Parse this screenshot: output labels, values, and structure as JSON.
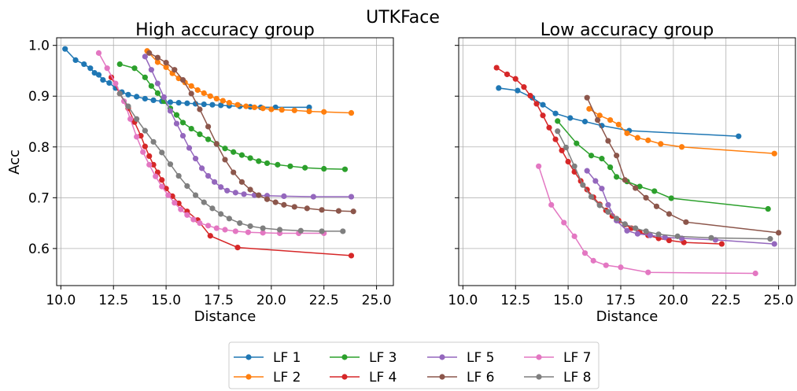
{
  "suptitle": "UTKFace",
  "colors": {
    "LF 1": "#1f77b4",
    "LF 2": "#ff7f0e",
    "LF 3": "#2ca02c",
    "LF 4": "#d62728",
    "LF 5": "#9467bd",
    "LF 6": "#8c564b",
    "LF 7": "#e377c2",
    "LF 8": "#7f7f7f"
  },
  "legend": {
    "position": "bottom-center",
    "ncol": 4,
    "entries": [
      "LF 1",
      "LF 2",
      "LF 3",
      "LF 4",
      "LF 5",
      "LF 6",
      "LF 7",
      "LF 8"
    ]
  },
  "chart_data": [
    {
      "type": "line",
      "title": "High accuracy group",
      "xlabel": "Distance",
      "ylabel": "Acc",
      "xlim": [
        9.8,
        25.8
      ],
      "ylim": [
        0.527,
        1.015
      ],
      "xticks": [
        10.0,
        12.5,
        15.0,
        17.5,
        20.0,
        22.5,
        25.0
      ],
      "xtick_labels": [
        "10.0",
        "12.5",
        "15.0",
        "17.5",
        "20.0",
        "22.5",
        "25.0"
      ],
      "yticks": [
        0.6,
        0.7,
        0.8,
        0.9,
        1.0
      ],
      "ytick_labels": [
        "0.6",
        "0.7",
        "0.8",
        "0.9",
        "1.0"
      ],
      "grid": true,
      "series": [
        {
          "name": "LF 1",
          "x": [
            10.2,
            10.7,
            11.1,
            11.4,
            11.6,
            11.8,
            12.0,
            12.3,
            12.6,
            12.9,
            13.2,
            13.6,
            14.0,
            14.4,
            14.8,
            15.2,
            15.6,
            16.0,
            16.4,
            16.8,
            17.2,
            17.6,
            18.0,
            18.5,
            19.0,
            19.5,
            20.2,
            21.8
          ],
          "y": [
            0.993,
            0.971,
            0.963,
            0.955,
            0.946,
            0.942,
            0.932,
            0.926,
            0.916,
            0.908,
            0.903,
            0.899,
            0.895,
            0.892,
            0.89,
            0.888,
            0.887,
            0.886,
            0.885,
            0.884,
            0.883,
            0.882,
            0.881,
            0.88,
            0.879,
            0.878,
            0.878,
            0.878
          ]
        },
        {
          "name": "LF 2",
          "x": [
            14.1,
            14.6,
            15.0,
            15.3,
            15.6,
            15.9,
            16.2,
            16.5,
            16.8,
            17.1,
            17.4,
            17.7,
            18.0,
            18.4,
            18.8,
            19.2,
            19.6,
            20.0,
            20.5,
            21.1,
            21.8,
            22.5,
            23.8
          ],
          "y": [
            0.989,
            0.967,
            0.957,
            0.945,
            0.935,
            0.927,
            0.92,
            0.912,
            0.906,
            0.9,
            0.895,
            0.891,
            0.887,
            0.883,
            0.88,
            0.878,
            0.876,
            0.874,
            0.873,
            0.872,
            0.87,
            0.869,
            0.867
          ]
        },
        {
          "name": "LF 3",
          "x": [
            12.8,
            13.5,
            14.0,
            14.3,
            14.6,
            14.9,
            15.2,
            15.5,
            15.8,
            16.2,
            16.6,
            17.0,
            17.4,
            17.8,
            18.2,
            18.6,
            19.0,
            19.4,
            19.8,
            20.3,
            20.9,
            21.6,
            22.5,
            23.5
          ],
          "y": [
            0.963,
            0.955,
            0.937,
            0.92,
            0.906,
            0.89,
            0.876,
            0.863,
            0.848,
            0.836,
            0.825,
            0.815,
            0.806,
            0.797,
            0.79,
            0.784,
            0.778,
            0.772,
            0.768,
            0.765,
            0.762,
            0.759,
            0.757,
            0.756
          ]
        },
        {
          "name": "LF 4",
          "x": [
            12.4,
            12.8,
            13.2,
            13.5,
            13.8,
            14.0,
            14.2,
            14.4,
            14.6,
            14.8,
            15.0,
            15.3,
            15.6,
            16.0,
            16.5,
            17.1,
            18.4,
            23.8
          ],
          "y": [
            0.937,
            0.905,
            0.876,
            0.849,
            0.822,
            0.801,
            0.782,
            0.765,
            0.75,
            0.735,
            0.718,
            0.703,
            0.689,
            0.673,
            0.656,
            0.625,
            0.602,
            0.586
          ]
        },
        {
          "name": "LF 5",
          "x": [
            14.0,
            14.3,
            14.6,
            14.9,
            15.2,
            15.5,
            15.8,
            16.1,
            16.4,
            16.7,
            17.0,
            17.3,
            17.6,
            17.9,
            18.3,
            18.7,
            19.2,
            19.8,
            20.6,
            22.0,
            23.8
          ],
          "y": [
            0.978,
            0.952,
            0.925,
            0.898,
            0.871,
            0.846,
            0.822,
            0.798,
            0.777,
            0.758,
            0.743,
            0.731,
            0.721,
            0.714,
            0.71,
            0.707,
            0.705,
            0.704,
            0.703,
            0.702,
            0.702
          ]
        },
        {
          "name": "LF 6",
          "x": [
            14.2,
            14.6,
            15.0,
            15.4,
            15.8,
            16.2,
            16.6,
            17.0,
            17.4,
            17.8,
            18.2,
            18.6,
            19.0,
            19.4,
            19.8,
            20.2,
            20.6,
            21.1,
            21.7,
            22.4,
            23.2,
            23.9
          ],
          "y": [
            0.985,
            0.976,
            0.966,
            0.952,
            0.932,
            0.905,
            0.874,
            0.84,
            0.806,
            0.775,
            0.75,
            0.731,
            0.716,
            0.705,
            0.697,
            0.691,
            0.686,
            0.682,
            0.679,
            0.676,
            0.674,
            0.673
          ]
        },
        {
          "name": "LF 7",
          "x": [
            11.8,
            12.2,
            12.6,
            13.0,
            13.3,
            13.6,
            13.9,
            14.2,
            14.5,
            14.8,
            15.1,
            15.4,
            15.7,
            16.0,
            16.3,
            16.6,
            17.0,
            17.4,
            17.8,
            18.3,
            18.9,
            19.6,
            20.4,
            21.3,
            22.5
          ],
          "y": [
            0.985,
            0.955,
            0.925,
            0.89,
            0.855,
            0.82,
            0.79,
            0.765,
            0.742,
            0.722,
            0.705,
            0.69,
            0.677,
            0.666,
            0.657,
            0.65,
            0.645,
            0.64,
            0.637,
            0.634,
            0.632,
            0.631,
            0.63,
            0.63,
            0.63
          ]
        },
        {
          "name": "LF 8",
          "x": [
            12.8,
            13.2,
            13.6,
            14.0,
            14.4,
            14.8,
            15.2,
            15.6,
            16.0,
            16.4,
            16.8,
            17.2,
            17.6,
            18.0,
            18.5,
            19.0,
            19.6,
            20.4,
            21.4,
            22.4,
            23.4
          ],
          "y": [
            0.905,
            0.88,
            0.855,
            0.832,
            0.81,
            0.789,
            0.766,
            0.743,
            0.723,
            0.705,
            0.691,
            0.679,
            0.668,
            0.659,
            0.65,
            0.644,
            0.64,
            0.637,
            0.635,
            0.634,
            0.634
          ]
        }
      ]
    },
    {
      "type": "line",
      "title": "Low accuracy group",
      "xlabel": "Distance",
      "ylabel": "",
      "xlim": [
        9.8,
        25.8
      ],
      "ylim": [
        0.527,
        1.015
      ],
      "xticks": [
        10.0,
        12.5,
        15.0,
        17.5,
        20.0,
        22.5,
        25.0
      ],
      "xtick_labels": [
        "10.0",
        "12.5",
        "15.0",
        "17.5",
        "20.0",
        "22.5",
        "25.0"
      ],
      "yticks": [
        0.6,
        0.7,
        0.8,
        0.9,
        1.0
      ],
      "ytick_labels": [],
      "grid": true,
      "series": [
        {
          "name": "LF 1",
          "x": [
            11.7,
            12.6,
            13.3,
            13.8,
            14.4,
            15.1,
            15.8,
            16.6,
            17.9,
            23.1
          ],
          "y": [
            0.916,
            0.911,
            0.897,
            0.883,
            0.866,
            0.857,
            0.85,
            0.842,
            0.832,
            0.821
          ]
        },
        {
          "name": "LF 2",
          "x": [
            16.0,
            16.5,
            17.0,
            17.4,
            17.8,
            18.3,
            18.8,
            19.4,
            20.4,
            24.8
          ],
          "y": [
            0.875,
            0.862,
            0.853,
            0.844,
            0.827,
            0.818,
            0.813,
            0.806,
            0.8,
            0.787
          ]
        },
        {
          "name": "LF 3",
          "x": [
            14.5,
            15.4,
            16.1,
            16.6,
            17.0,
            17.3,
            17.8,
            18.4,
            19.1,
            19.9,
            24.5
          ],
          "y": [
            0.851,
            0.807,
            0.783,
            0.777,
            0.76,
            0.741,
            0.732,
            0.722,
            0.713,
            0.699,
            0.678
          ]
        },
        {
          "name": "LF 4",
          "x": [
            11.6,
            12.1,
            12.5,
            12.9,
            13.2,
            13.5,
            13.8,
            14.1,
            14.4,
            14.7,
            15.0,
            15.3,
            15.6,
            15.9,
            16.2,
            16.5,
            16.8,
            17.1,
            17.4,
            17.7,
            18.0,
            18.4,
            18.8,
            19.3,
            19.8,
            20.5,
            22.3
          ],
          "y": [
            0.956,
            0.943,
            0.934,
            0.918,
            0.901,
            0.885,
            0.862,
            0.838,
            0.815,
            0.793,
            0.771,
            0.751,
            0.733,
            0.716,
            0.701,
            0.687,
            0.675,
            0.664,
            0.655,
            0.647,
            0.64,
            0.632,
            0.626,
            0.62,
            0.616,
            0.612,
            0.609
          ]
        },
        {
          "name": "LF 5",
          "x": [
            15.9,
            16.3,
            16.6,
            16.9,
            17.3,
            17.8,
            18.3,
            18.9,
            19.6,
            20.4,
            22.0,
            24.8
          ],
          "y": [
            0.753,
            0.733,
            0.718,
            0.686,
            0.655,
            0.635,
            0.629,
            0.626,
            0.622,
            0.62,
            0.617,
            0.609
          ]
        },
        {
          "name": "LF 6",
          "x": [
            15.9,
            16.4,
            16.9,
            17.3,
            17.7,
            18.2,
            18.7,
            19.2,
            19.8,
            20.6,
            25.0
          ],
          "y": [
            0.897,
            0.853,
            0.812,
            0.783,
            0.735,
            0.719,
            0.7,
            0.683,
            0.668,
            0.652,
            0.631
          ]
        },
        {
          "name": "LF 7",
          "x": [
            13.6,
            14.2,
            14.8,
            15.3,
            15.8,
            16.2,
            16.8,
            17.5,
            18.8,
            23.9
          ],
          "y": [
            0.762,
            0.686,
            0.651,
            0.624,
            0.591,
            0.576,
            0.567,
            0.563,
            0.553,
            0.551
          ]
        },
        {
          "name": "LF 8",
          "x": [
            14.5,
            14.9,
            15.3,
            15.7,
            16.1,
            16.5,
            16.9,
            17.3,
            17.7,
            18.2,
            18.7,
            19.3,
            20.2,
            21.8,
            24.6
          ],
          "y": [
            0.831,
            0.799,
            0.762,
            0.725,
            0.702,
            0.685,
            0.672,
            0.659,
            0.648,
            0.64,
            0.634,
            0.628,
            0.624,
            0.621,
            0.619
          ]
        }
      ]
    }
  ]
}
